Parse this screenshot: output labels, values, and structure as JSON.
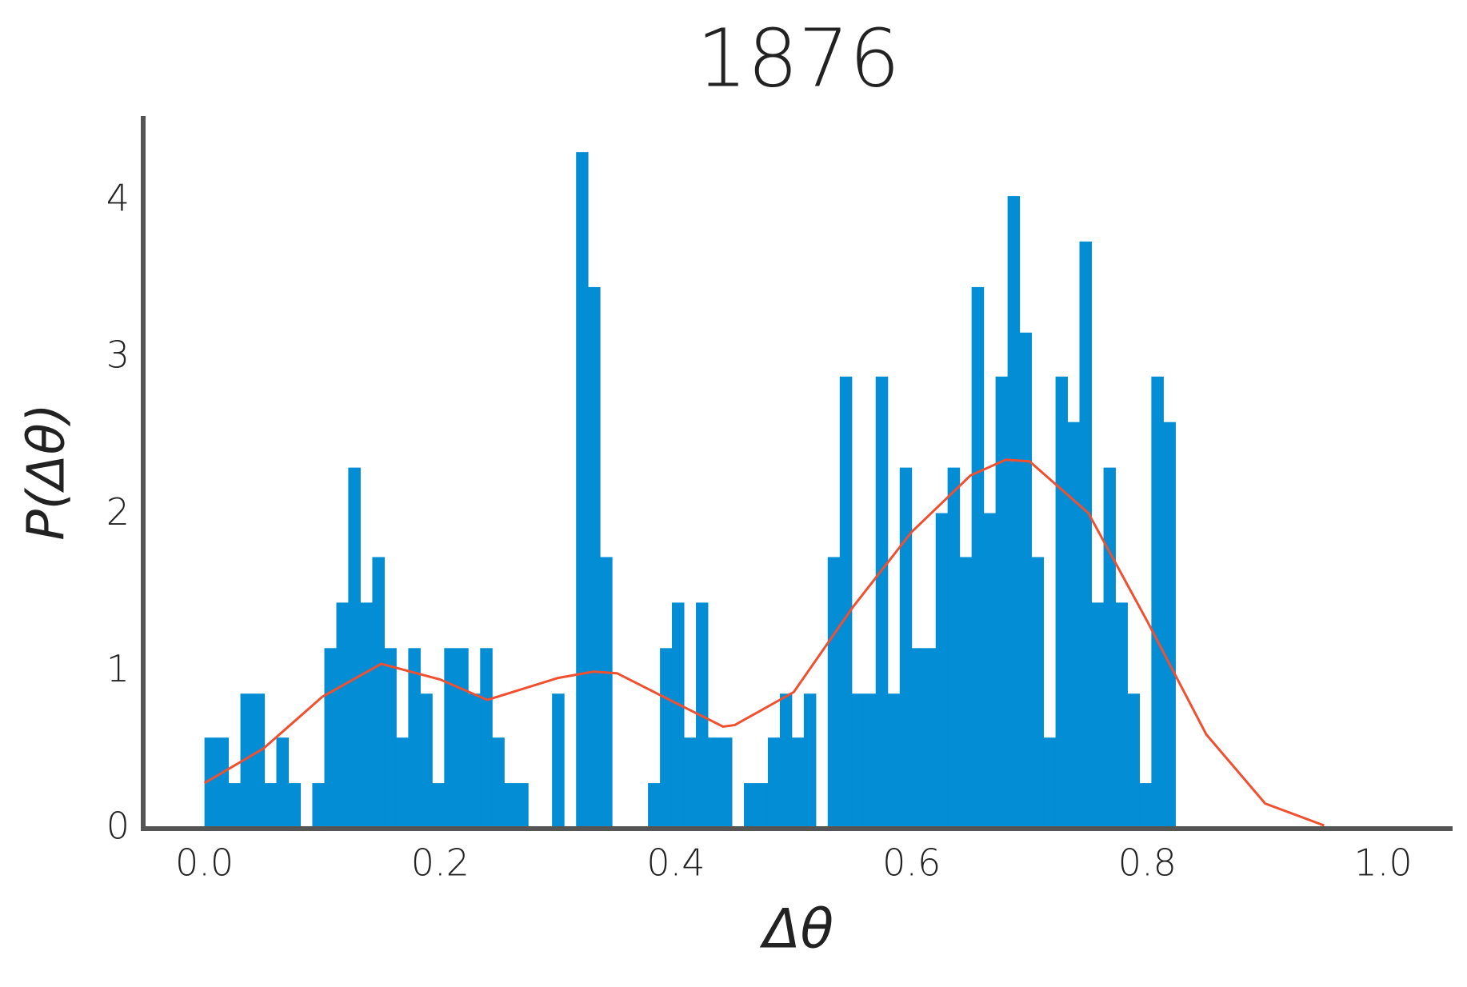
{
  "chart_data": {
    "type": "histogram",
    "title": "1876",
    "xlabel": "Δθ",
    "ylabel": "P(Δθ)",
    "bins": [
      0,
      0.0102,
      0.0203,
      0.0305,
      0.0407,
      0.0509,
      0.061,
      0.0712,
      0.0814,
      0.0915,
      0.1017,
      0.1119,
      0.122,
      0.1322,
      0.1424,
      0.1526,
      0.1627,
      0.1729,
      0.1831,
      0.1932,
      0.2034,
      0.2136,
      0.2237,
      0.2339,
      0.2441,
      0.2543,
      0.2644,
      0.2746,
      0.2848,
      0.2949,
      0.3051,
      0.3153,
      0.3254,
      0.3356,
      0.3458,
      0.356,
      0.3661,
      0.3763,
      0.3865,
      0.3966,
      0.4068,
      0.417,
      0.4271,
      0.4373,
      0.4475,
      0.4577,
      0.4678,
      0.478,
      0.4882,
      0.4983,
      0.5085,
      0.5187,
      0.5288,
      0.539,
      0.5492,
      0.5594,
      0.5695,
      0.5797,
      0.5899,
      0.6,
      0.6102,
      0.6204,
      0.6305,
      0.6407,
      0.6509,
      0.6611,
      0.6712,
      0.6814,
      0.6916,
      0.7017,
      0.7119,
      0.7221,
      0.7322,
      0.7424,
      0.7526,
      0.7628,
      0.7729,
      0.7831,
      0.7933,
      0.8034,
      0.8136,
      0.8238
    ],
    "values": [
      0.58,
      0.58,
      0.29,
      0.86,
      0.86,
      0.29,
      0.58,
      0.29,
      0,
      0.29,
      1.15,
      1.44,
      2.3,
      1.44,
      1.73,
      1.15,
      0.58,
      1.15,
      0.86,
      0.29,
      1.15,
      1.15,
      0.86,
      1.15,
      0.58,
      0.29,
      0.29,
      0,
      0,
      0.86,
      0,
      4.31,
      3.45,
      1.73,
      0,
      0,
      0,
      0.29,
      1.15,
      1.44,
      0.58,
      1.44,
      0.58,
      0.58,
      0,
      0.29,
      0.29,
      0.58,
      0.86,
      0.58,
      0.86,
      0,
      1.73,
      2.88,
      0.86,
      0.86,
      2.88,
      0.86,
      2.3,
      1.15,
      1.15,
      2.01,
      2.3,
      1.73,
      3.45,
      2.01,
      2.88,
      4.03,
      3.16,
      1.73,
      0.58,
      2.88,
      2.59,
      3.74,
      1.44,
      2.3,
      1.44,
      0.86,
      0.29,
      2.88,
      2.59
    ],
    "color": "#038dd5",
    "kde": {
      "x": [
        0,
        0.05,
        0.1,
        0.15,
        0.2,
        0.24,
        0.3,
        0.33,
        0.35,
        0.4,
        0.44,
        0.45,
        0.5,
        0.55,
        0.6,
        0.65,
        0.68,
        0.7,
        0.75,
        0.8,
        0.85,
        0.9,
        0.95
      ],
      "values": [
        0.29,
        0.51,
        0.84,
        1.05,
        0.95,
        0.82,
        0.96,
        1.0,
        0.99,
        0.8,
        0.65,
        0.66,
        0.87,
        1.41,
        1.89,
        2.25,
        2.35,
        2.34,
        2.01,
        1.32,
        0.6,
        0.16,
        0.02
      ],
      "color": "#f05030"
    },
    "xlim": [
      -0.052,
      1.059
    ],
    "xticks": [
      {
        "value": 0,
        "label": "0.0"
      },
      {
        "value": 0.2,
        "label": "0.2"
      },
      {
        "value": 0.4,
        "label": "0.4"
      },
      {
        "value": 0.6,
        "label": "0.6"
      },
      {
        "value": 0.8,
        "label": "0.8"
      },
      {
        "value": 1,
        "label": "1.0"
      }
    ],
    "ylim": [
      0,
      4.54
    ],
    "yticks": [
      0,
      1,
      2,
      3,
      4
    ],
    "grid": false
  }
}
